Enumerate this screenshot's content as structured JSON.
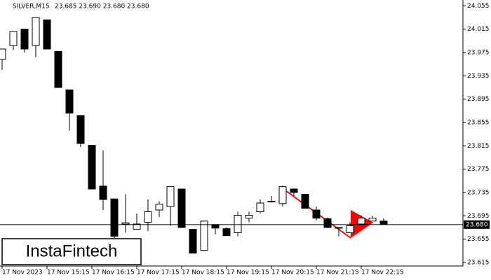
{
  "header": {
    "symbol": "SILVER,M15",
    "ohlc": "23.685 23.690 23.680 23.680"
  },
  "logo": "InstaFintech",
  "chart_data": {
    "type": "candlestick",
    "categories": [
      "17 Nov 2023",
      null,
      null,
      null,
      "17 Nov 15:15",
      null,
      null,
      null,
      "17 Nov 16:15",
      null,
      null,
      null,
      "17 Nov 17:15",
      null,
      null,
      null,
      "17 Nov 18:15",
      null,
      null,
      null,
      "17 Nov 19:15",
      null,
      null,
      null,
      "17 Nov 20:15",
      null,
      null,
      null,
      "17 Nov 21:15",
      null,
      null,
      null,
      "17 Nov 22:15",
      null,
      null
    ],
    "open": [
      23.963,
      23.987,
      24.015,
      23.987,
      24.031,
      23.977,
      23.911,
      23.867,
      23.816,
      23.746,
      23.724,
      23.681,
      23.672,
      23.684,
      23.705,
      23.711,
      23.741,
      23.672,
      23.636,
      23.68,
      23.673,
      23.666,
      23.691,
      23.702,
      23.719,
      23.716,
      23.741,
      23.732,
      23.705,
      23.69,
      23.675,
      23.666,
      23.681,
      23.686,
      23.686
    ],
    "high": [
      23.981,
      24.011,
      24.015,
      24.035,
      24.031,
      23.977,
      23.911,
      23.867,
      23.816,
      23.807,
      23.724,
      23.732,
      23.699,
      23.723,
      23.72,
      23.745,
      23.741,
      23.672,
      23.686,
      23.68,
      23.675,
      23.702,
      23.702,
      23.723,
      23.729,
      23.747,
      23.742,
      23.732,
      23.711,
      23.692,
      23.675,
      23.684,
      23.696,
      23.695,
      23.691
    ],
    "low": [
      23.945,
      23.979,
      23.975,
      23.967,
      23.981,
      23.915,
      23.841,
      23.813,
      23.741,
      23.705,
      23.651,
      23.666,
      23.672,
      23.669,
      23.693,
      23.678,
      23.675,
      23.631,
      23.636,
      23.663,
      23.661,
      23.66,
      23.684,
      23.699,
      23.719,
      23.711,
      23.729,
      23.708,
      23.687,
      23.674,
      23.66,
      23.666,
      23.681,
      23.686,
      23.681
    ],
    "close": [
      23.981,
      24.011,
      23.981,
      24.035,
      23.981,
      23.915,
      23.871,
      23.819,
      23.741,
      23.723,
      23.66,
      23.683,
      23.681,
      23.702,
      23.715,
      23.745,
      23.675,
      23.631,
      23.686,
      23.674,
      23.661,
      23.696,
      23.696,
      23.717,
      23.72,
      23.745,
      23.735,
      23.708,
      23.691,
      23.675,
      23.674,
      23.678,
      23.691,
      23.691,
      23.681
    ],
    "up_color": "#ffffff",
    "down_color": "#000000",
    "ylim": [
      23.609,
      24.065
    ],
    "yticks": [
      24.055,
      24.015,
      23.975,
      23.935,
      23.895,
      23.855,
      23.815,
      23.775,
      23.735,
      23.695,
      23.655,
      23.615
    ],
    "current_price": {
      "value": 23.68,
      "label": "23.680"
    }
  }
}
